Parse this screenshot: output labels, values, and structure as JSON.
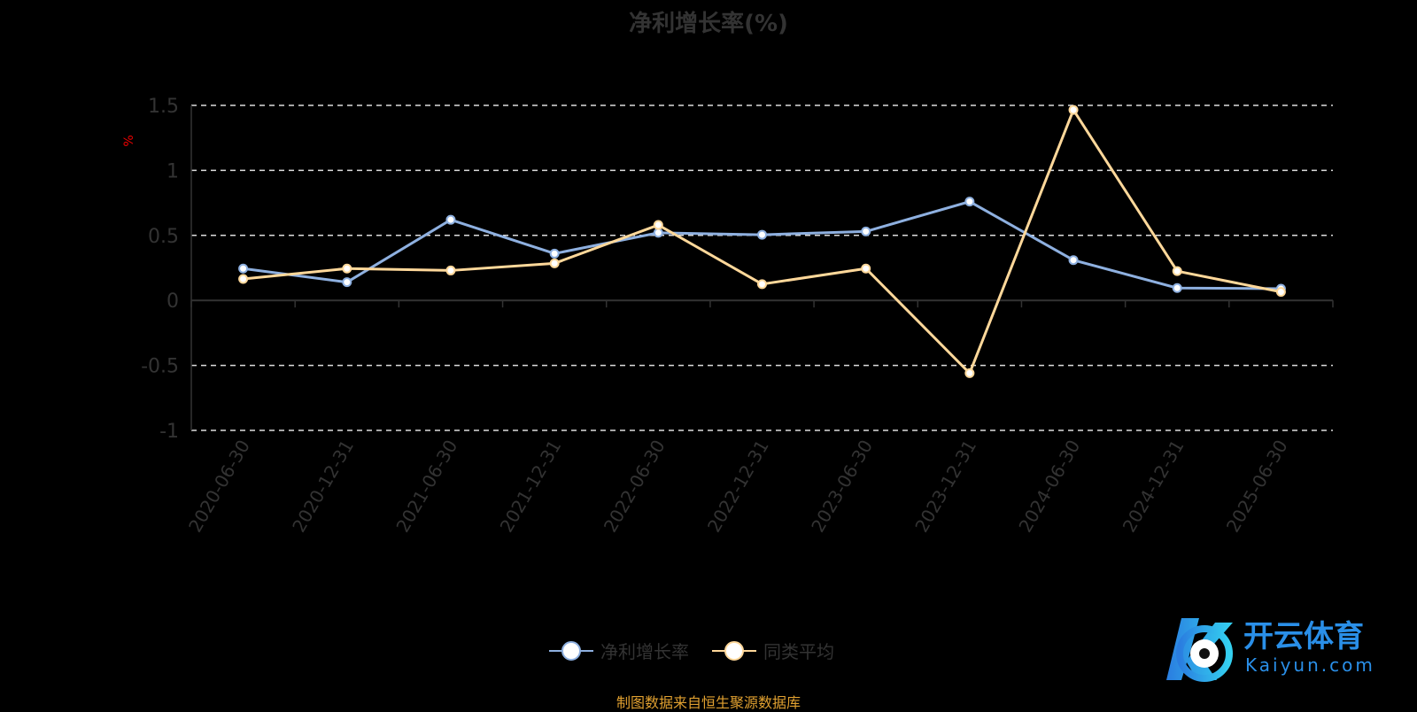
{
  "chart_data": {
    "type": "line",
    "title": "净利增长率(%)",
    "ylabel": "%",
    "xlabel": "",
    "ylim": [
      -1,
      1.5
    ],
    "yticks": [
      -1,
      -0.5,
      0,
      0.5,
      1,
      1.5
    ],
    "ytick_labels": [
      "-1",
      "-0.5",
      "0",
      "0.5",
      "1",
      "1.5"
    ],
    "grid": true,
    "legend": "bottom",
    "categories": [
      "2020-06-30",
      "2020-12-31",
      "2021-06-30",
      "2021-12-31",
      "2022-06-30",
      "2022-12-31",
      "2023-06-30",
      "2023-12-31",
      "2024-06-30",
      "2024-12-31",
      "2025-06-30"
    ],
    "series": [
      {
        "name": "净利增长率",
        "color": "#8eb0e0",
        "values": [
          0.245,
          0.14,
          0.62,
          0.36,
          0.52,
          0.505,
          0.53,
          0.76,
          0.31,
          0.095,
          0.09
        ]
      },
      {
        "name": "同类平均",
        "color": "#ffd89a",
        "values": [
          0.165,
          0.245,
          0.23,
          0.285,
          0.58,
          0.125,
          0.245,
          -0.56,
          1.465,
          0.225,
          0.065
        ]
      }
    ]
  },
  "source": "制图数据来自恒生聚源数据库",
  "watermark": {
    "cn": "开云体育",
    "en": "Kaiyun.com"
  }
}
